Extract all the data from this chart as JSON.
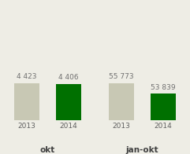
{
  "groups": [
    {
      "label": "okt",
      "bars": [
        {
          "year": "2013",
          "value": 4423,
          "color": "#c8c8b4"
        },
        {
          "year": "2014",
          "value": 4406,
          "color": "#007000"
        }
      ]
    },
    {
      "label": "jan-okt",
      "bars": [
        {
          "year": "2013",
          "value": 55773,
          "color": "#c8c8b4"
        },
        {
          "year": "2014",
          "value": 53839,
          "color": "#007000"
        }
      ]
    }
  ],
  "bar_width": 0.6,
  "value_fontsize": 6.5,
  "tick_fontsize": 6.5,
  "group_label_fontsize": 7.5,
  "background_color": "#eeede5",
  "value_color": "#707070"
}
